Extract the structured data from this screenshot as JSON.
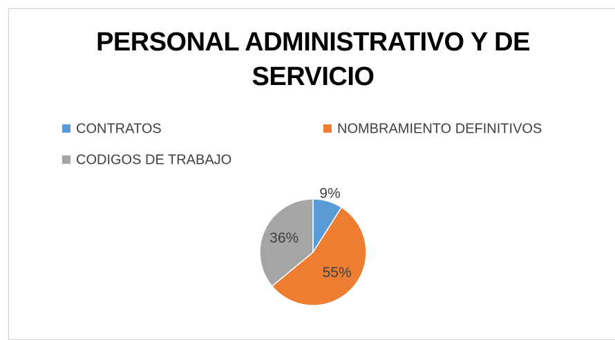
{
  "chart_data": {
    "type": "pie",
    "title": "PERSONAL ADMINISTRATIVO Y DE SERVICIO",
    "categories": [
      "CONTRATOS",
      "NOMBRAMIENTO DEFINITIVOS",
      "CODIGOS DE TRABAJO"
    ],
    "values": [
      9,
      55,
      36
    ],
    "value_labels": [
      "9%",
      "55%",
      "36%"
    ],
    "colors": [
      "#5b9bd5",
      "#ed7d31",
      "#a5a5a5"
    ],
    "legend": "top"
  }
}
